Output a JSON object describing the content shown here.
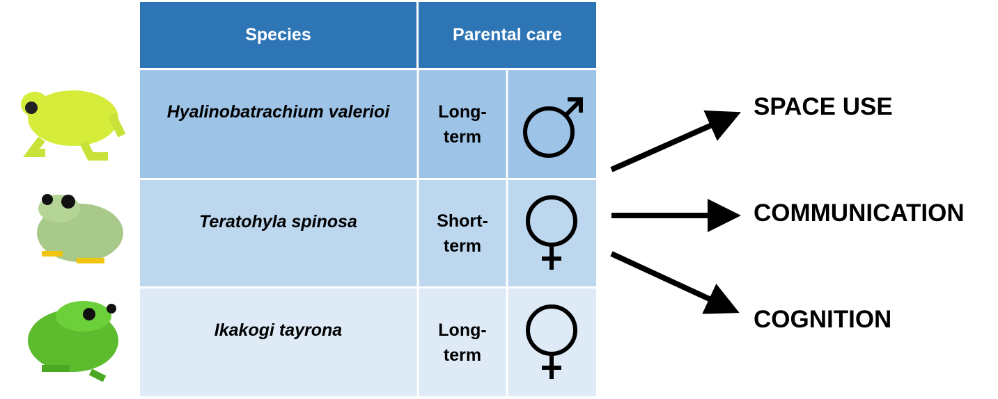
{
  "table": {
    "header": {
      "species": "Species",
      "parental_care": "Parental care"
    },
    "rows": [
      {
        "species": "Hyalinobatrachium valerioi",
        "care": "Long-term"
      },
      {
        "species": "Teratohyla spinosa",
        "care": "Short-term"
      },
      {
        "species": "Ikakogi tayrona",
        "care": "Long-term"
      }
    ]
  },
  "outcomes": [
    "SPACE USE",
    "COMMUNICATION",
    "COGNITION"
  ]
}
